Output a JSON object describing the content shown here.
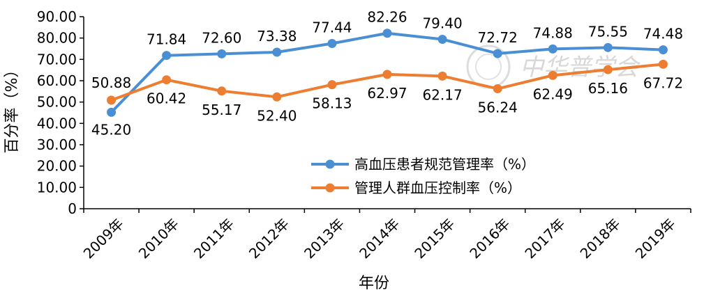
{
  "chart_data": {
    "type": "line",
    "categories": [
      "2009年",
      "2010年",
      "2011年",
      "2012年",
      "2013年",
      "2014年",
      "2015年",
      "2016年",
      "2017年",
      "2018年",
      "2019年"
    ],
    "series": [
      {
        "name": "高血压患者规范管理率（%）",
        "color": "#4a8fd4",
        "values": [
          45.2,
          71.84,
          72.6,
          73.38,
          77.44,
          82.26,
          79.4,
          72.72,
          74.88,
          75.55,
          74.48
        ],
        "labels": [
          "45.20",
          "71.84",
          "72.60",
          "73.38",
          "77.44",
          "82.26",
          "79.40",
          "72.72",
          "74.88",
          "75.55",
          "74.48"
        ]
      },
      {
        "name": "管理人群血压控制率（%）",
        "color": "#ed7d31",
        "values": [
          50.88,
          60.42,
          55.17,
          52.4,
          58.13,
          62.97,
          62.17,
          56.24,
          62.49,
          65.16,
          67.72
        ],
        "labels": [
          "50.88",
          "60.42",
          "55.17",
          "52.40",
          "58.13",
          "62.97",
          "62.17",
          "56.24",
          "62.49",
          "65.16",
          "67.72"
        ]
      }
    ],
    "xlabel": "年份",
    "ylabel": "百分率（%）",
    "ylim": [
      0,
      90
    ],
    "yticks": [
      0,
      10,
      20,
      30,
      40,
      50,
      60,
      70,
      80,
      90
    ],
    "ytick_labels": [
      "0",
      "10.00",
      "20.00",
      "30.00",
      "40.00",
      "50.00",
      "60.00",
      "70.00",
      "80.00",
      "90.00"
    ],
    "grid": false,
    "legend_position": "center-right"
  },
  "watermark": {
    "text": "中华普学会"
  }
}
